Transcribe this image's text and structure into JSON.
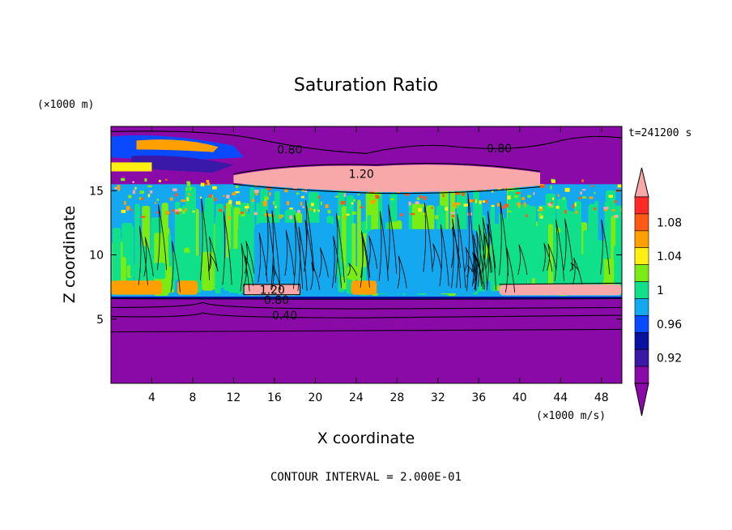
{
  "chart_data": {
    "type": "heatmap",
    "title": "Saturation Ratio",
    "xlabel": "X coordinate",
    "ylabel": "Z coordinate",
    "x_unit": "(×1000 m/s)",
    "y_unit": "(×1000 m)",
    "time_label": "t=241200 s",
    "footer": "CONTOUR INTERVAL = 2.000E-01",
    "xlim": [
      0,
      50
    ],
    "ylim": [
      0,
      20
    ],
    "x_ticks": [
      4,
      8,
      12,
      16,
      20,
      24,
      28,
      32,
      36,
      40,
      44,
      48
    ],
    "y_ticks": [
      5,
      10,
      15
    ],
    "colorbar": {
      "tick_labels": [
        "0.92",
        "0.96",
        "1",
        "1.04",
        "1.08"
      ],
      "tick_values": [
        0.92,
        0.96,
        1.0,
        1.04,
        1.08
      ],
      "levels": [
        0.9,
        0.92,
        0.94,
        0.96,
        0.98,
        1.0,
        1.02,
        1.04,
        1.06,
        1.08,
        1.1
      ],
      "colors": [
        "#8a0aa8",
        "#3a18a8",
        "#0a10a0",
        "#0a4aff",
        "#14a8f0",
        "#10e08a",
        "#7aec14",
        "#fff012",
        "#ffa000",
        "#ff5a14",
        "#ff2a28"
      ],
      "over_color": "#f8a8a8",
      "under_color": "#8a0aa8"
    },
    "contour_labels": [
      {
        "text": "0.80",
        "x": 17.5,
        "y": 18.2
      },
      {
        "text": "0.80",
        "x": 38.0,
        "y": 18.3
      },
      {
        "text": "1.20",
        "x": 24.5,
        "y": 16.3
      },
      {
        "text": "1.20",
        "x": 15.8,
        "y": 7.3
      },
      {
        "text": "0.80",
        "x": 16.2,
        "y": 6.5
      },
      {
        "text": "0.40",
        "x": 17.0,
        "y": 5.3
      }
    ],
    "regions": {
      "stable_layer": {
        "z_min": 0,
        "z_max": 6.6,
        "value": 0.85
      },
      "mixed_layer": {
        "z_min": 6.6,
        "z_max": 15.5,
        "value": 1.0
      },
      "supersaturated_band": {
        "x_min": 12.0,
        "x_max": 42.0,
        "z_min": 14.8,
        "z_max": 17.0,
        "value": 1.2
      },
      "upper_layer": {
        "z_min": 17.0,
        "z_max": 20,
        "value": 0.8
      }
    }
  }
}
